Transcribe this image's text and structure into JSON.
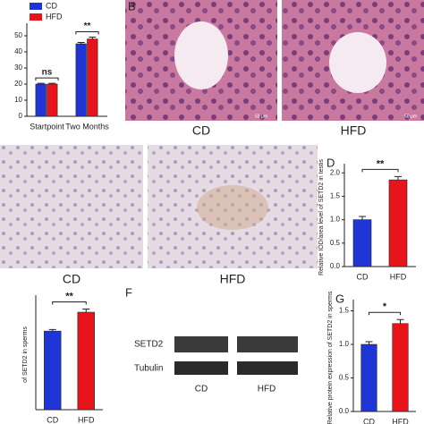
{
  "chart_data": [
    {
      "type": "bar",
      "categories": [
        "Startpoint",
        "Two Months"
      ],
      "series": [
        {
          "name": "CD",
          "color": "#1f35d6",
          "values": [
            20,
            45
          ],
          "errors": [
            0.5,
            0.8
          ]
        },
        {
          "name": "HFD",
          "color": "#e8141c",
          "values": [
            20,
            48
          ],
          "errors": [
            0.5,
            1.2
          ]
        }
      ],
      "ylim": [
        0,
        55
      ],
      "yticks": [
        0,
        10,
        20,
        30,
        40,
        50
      ],
      "annotations": [
        "ns",
        "**"
      ]
    },
    {
      "type": "bar",
      "panel": "D",
      "ylabel": "Relative IOD/area level of SETD2 in testis",
      "categories": [
        "CD",
        "HFD"
      ],
      "colors": [
        "#1f35d6",
        "#e8141c"
      ],
      "values": [
        1.0,
        1.85
      ],
      "errors": [
        0.07,
        0.07
      ],
      "ylim": [
        0,
        2.1
      ],
      "yticks": [
        {
          "value": 0,
          "label": "0.0"
        },
        0.5,
        {
          "value": 1,
          "label": "1.0"
        },
        1.5,
        {
          "value": 2,
          "label": "2.0"
        }
      ],
      "annotations": [
        "**"
      ]
    },
    {
      "type": "bar",
      "ylabel": "of SETD2 in sperms",
      "categories": [
        "CD",
        "HFD"
      ],
      "colors": [
        "#1f35d6",
        "#e8141c"
      ],
      "values": [
        1.0,
        1.24
      ],
      "errors": [
        0.02,
        0.04
      ],
      "ylim": [
        0,
        1.4
      ],
      "yticks": [],
      "annotations": [
        "**"
      ]
    },
    {
      "type": "bar",
      "panel": "G",
      "ylabel": "Relative protein expression of SETD2 in sperms",
      "categories": [
        "CD",
        "HFD"
      ],
      "colors": [
        "#1f35d6",
        "#e8141c"
      ],
      "values": [
        1.0,
        1.31
      ],
      "errors": [
        0.04,
        0.06
      ],
      "ylim": [
        0,
        1.6
      ],
      "yticks": [
        {
          "value": 0,
          "label": "0.0"
        },
        0.5,
        {
          "value": 1,
          "label": "1.0"
        },
        1.5
      ],
      "annotations": [
        "*"
      ]
    }
  ],
  "he": {
    "label": "B",
    "captions": [
      "CD",
      "HFD"
    ],
    "scale_bars": [
      "50 μm",
      "50 μm"
    ]
  },
  "ihc": {
    "captions": [
      "CD",
      "HFD"
    ]
  },
  "blot": {
    "label": "F",
    "rows": [
      "SETD2",
      "Tubulin"
    ],
    "groups": [
      "CD",
      "HFD"
    ]
  }
}
